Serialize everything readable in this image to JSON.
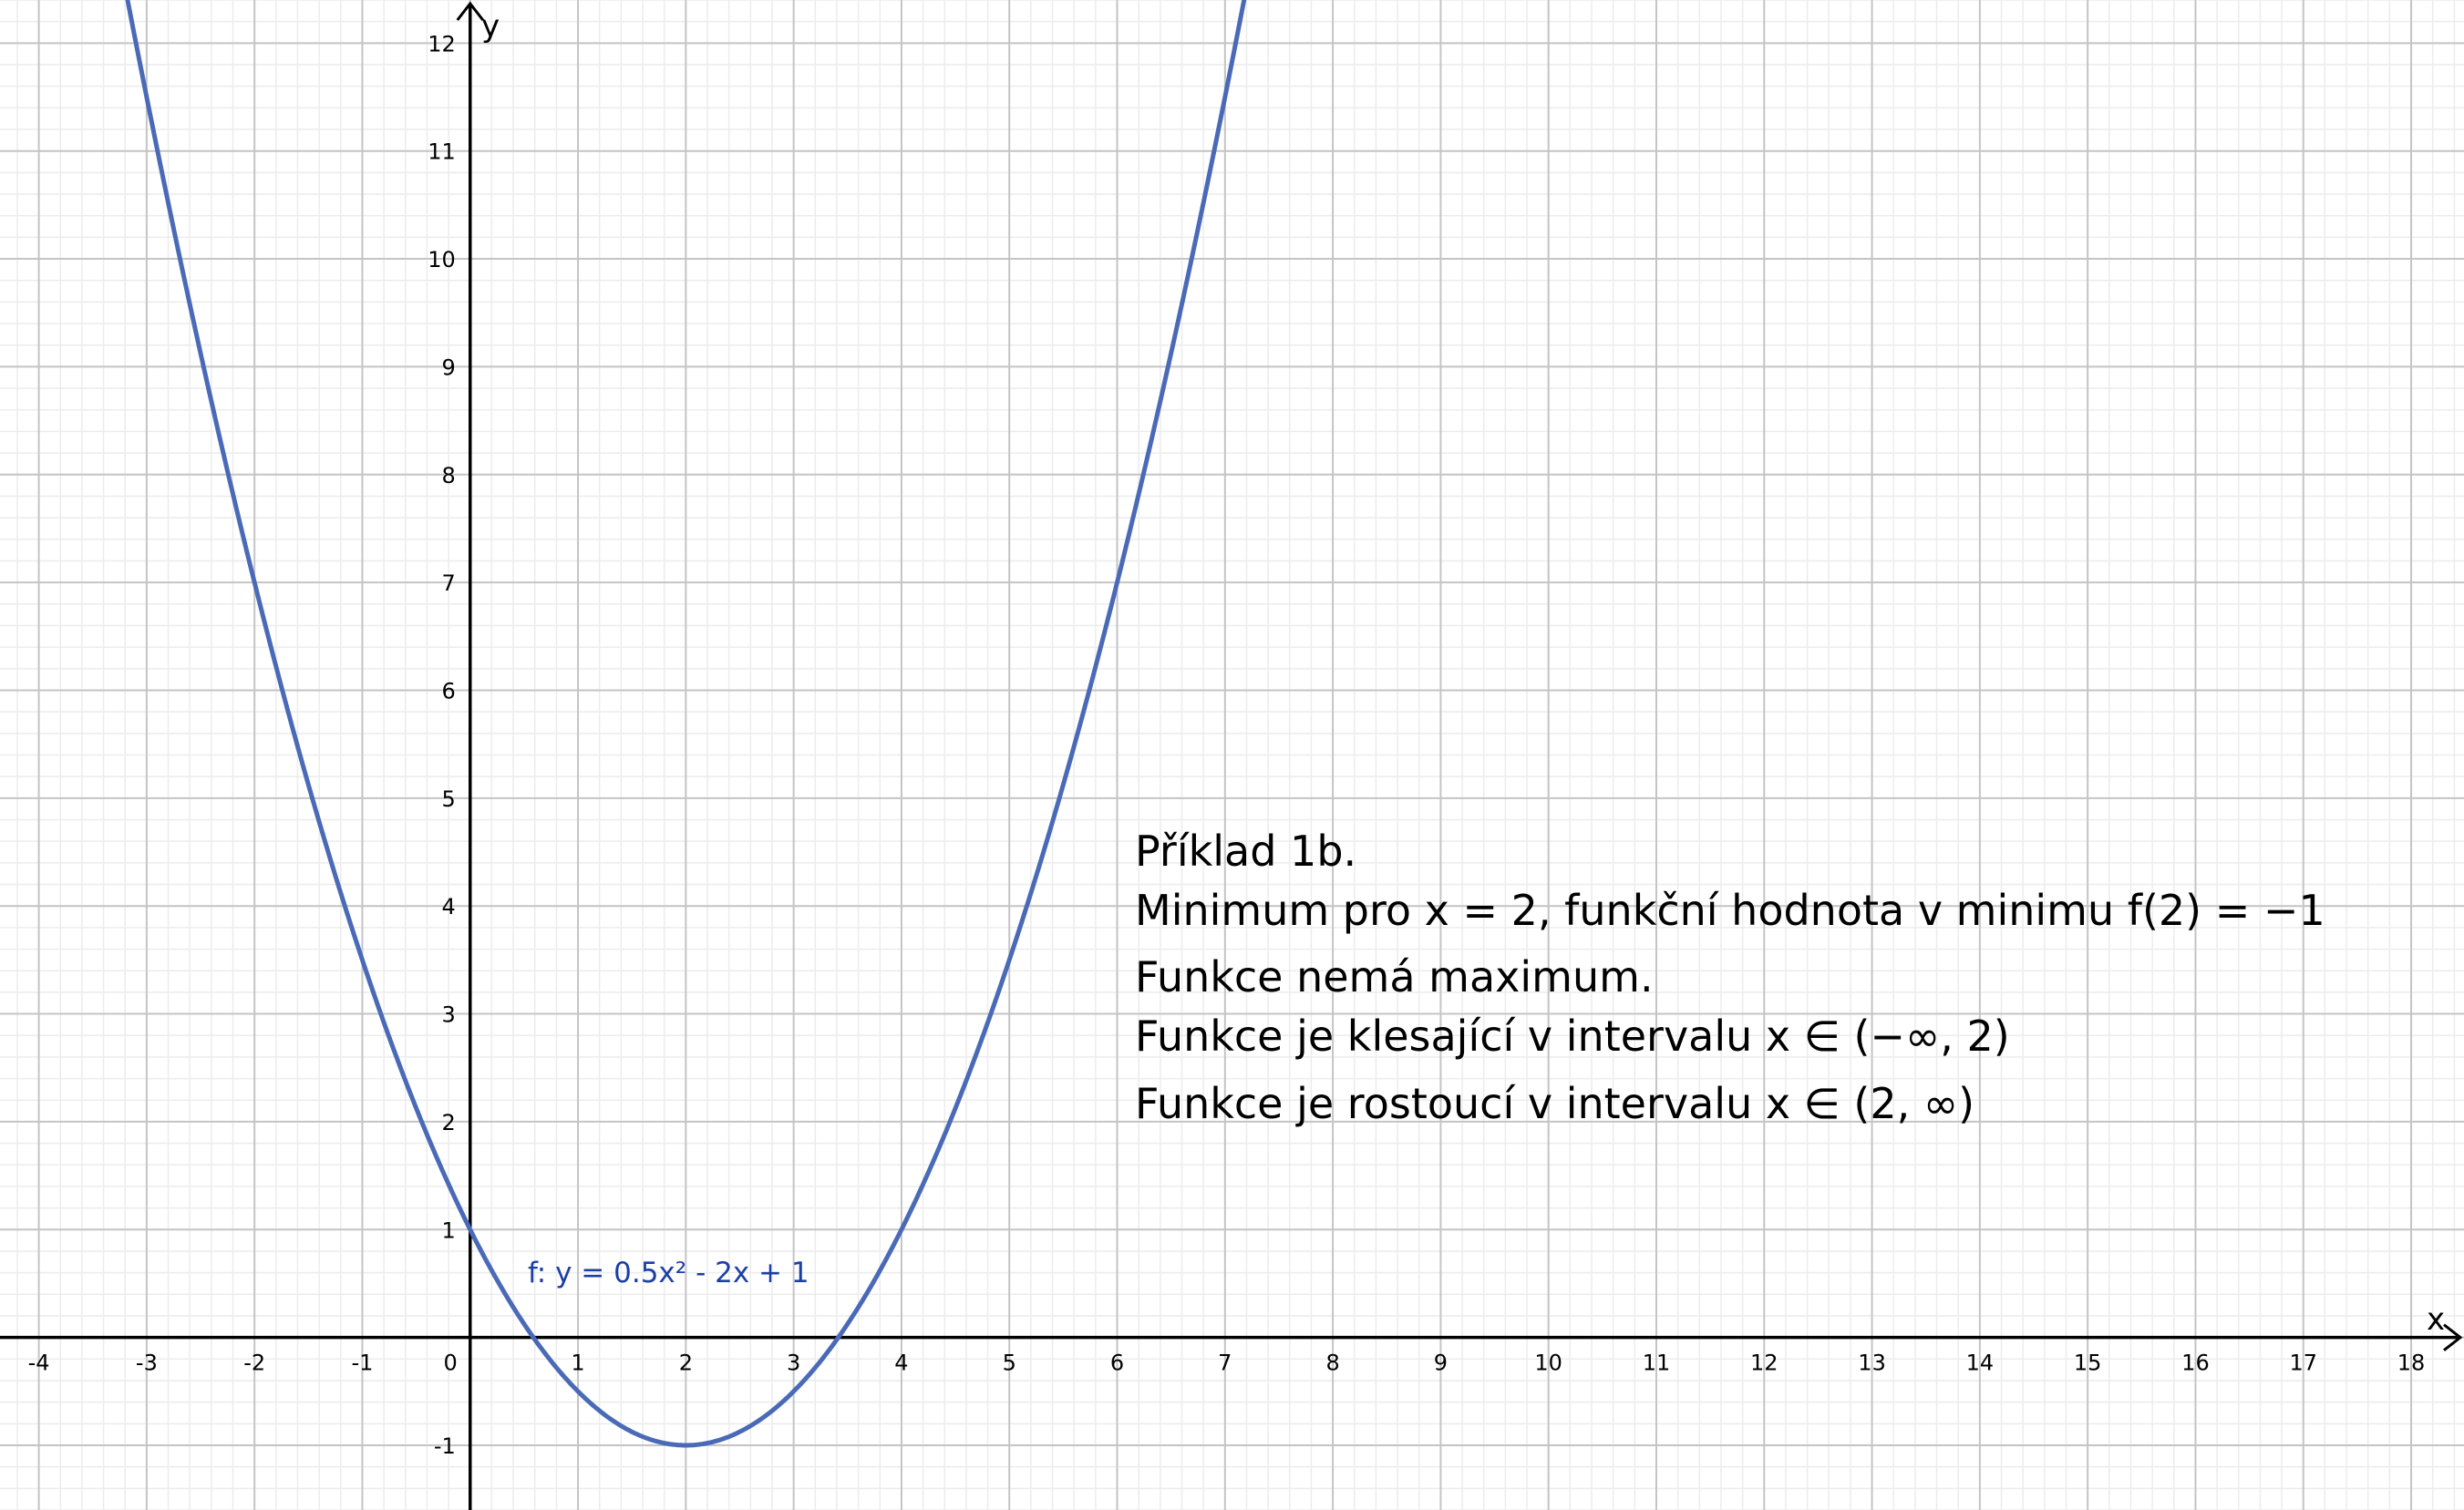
{
  "chart_data": {
    "type": "line",
    "xlabel": "x",
    "ylabel": "y",
    "xlim": [
      -4.36,
      18.49
    ],
    "ylim": [
      -1.6,
      12.4
    ],
    "grid": true,
    "minor_grid_subdivisions": 5,
    "x_ticks": [
      "-4",
      "-3",
      "-2",
      "-1",
      "0",
      "1",
      "2",
      "3",
      "4",
      "5",
      "6",
      "7",
      "8",
      "9",
      "10",
      "11",
      "12",
      "13",
      "14",
      "15",
      "16",
      "17",
      "18"
    ],
    "y_ticks": [
      "-1",
      "1",
      "2",
      "3",
      "4",
      "5",
      "6",
      "7",
      "8",
      "9",
      "10",
      "11",
      "12"
    ],
    "series": [
      {
        "name": "f",
        "label": "f: y = 0.5x² - 2x + 1",
        "coefficients": {
          "a": 0.5,
          "b": -2,
          "c": 1
        },
        "color": "#4a6ab8"
      }
    ],
    "annotations": [
      "Příklad 1b.",
      "Minimum pro x = 2, funkční hodnota v minimu f(2) = −1",
      "Funkce nemá maximum.",
      "Funkce je klesající v intervalu   x ∈ (−∞, 2)",
      "Funkce je rostoucí v intervalu   x ∈ (2, ∞)"
    ]
  },
  "colors": {
    "major_grid": "#c4c4c4",
    "minor_grid": "#ececec",
    "axis": "#000000",
    "label": "#1c3fa6"
  }
}
